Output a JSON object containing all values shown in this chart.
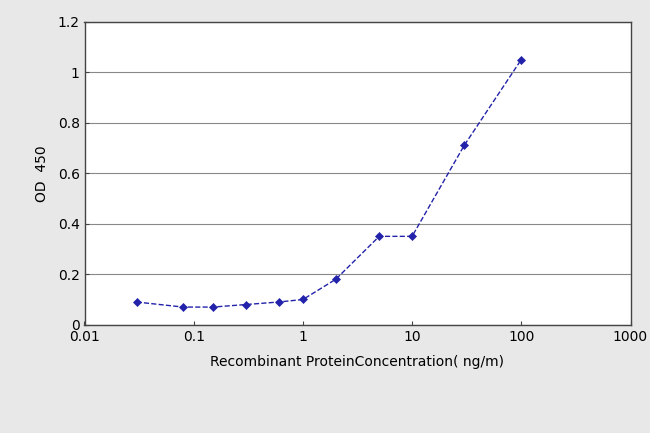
{
  "x": [
    0.03,
    0.08,
    0.15,
    0.3,
    0.6,
    1.0,
    2.0,
    5.0,
    10.0,
    30.0,
    100.0
  ],
  "y": [
    0.09,
    0.07,
    0.07,
    0.08,
    0.09,
    0.1,
    0.18,
    0.35,
    0.35,
    0.71,
    1.05
  ],
  "line_color": "#2222aa",
  "marker": "D",
  "marker_size": 4,
  "xlabel": "Recombinant ProteinConcentration( ng/m)",
  "ylabel": "OD  450",
  "ylim": [
    0,
    1.2
  ],
  "yticks": [
    0,
    0.2,
    0.4,
    0.6,
    0.8,
    1.0,
    1.2
  ],
  "ytick_labels": [
    "0",
    "0.2",
    "0.4",
    "0.6",
    "0.8",
    "1",
    "1.2"
  ],
  "xlim_log": [
    0.01,
    1000
  ],
  "xticks_log": [
    0.01,
    0.1,
    1,
    10,
    100,
    1000
  ],
  "xtick_labels": [
    "0.01",
    "0.1",
    "1",
    "10",
    "100",
    "1000"
  ],
  "background_color": "#e8e8e8",
  "plot_bg_color": "#ffffff",
  "grid_color": "#888888",
  "label_fontsize": 10,
  "tick_fontsize": 10
}
